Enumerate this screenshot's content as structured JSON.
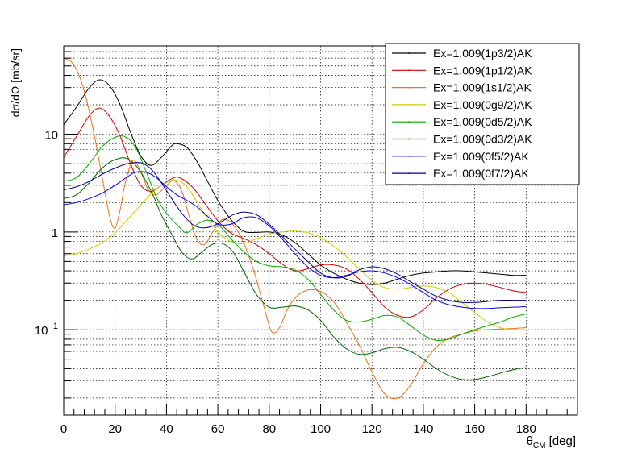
{
  "chart_data": {
    "type": "line",
    "title": "",
    "xlabel_main": "θ",
    "xlabel_sub": "CM",
    "xlabel_unit": " [deg]",
    "ylabel": "dσ/dΩ [mb/sr]",
    "xlim": [
      0,
      200
    ],
    "ylim": [
      0.0134,
      80
    ],
    "yscale": "log",
    "grid": true,
    "legend_position": "top-right",
    "x_ticks": [
      0,
      20,
      40,
      60,
      80,
      100,
      120,
      140,
      160,
      180
    ],
    "y_ticks": [
      {
        "value": 0.1,
        "label_base": "10",
        "label_exp": "−1"
      },
      {
        "value": 1,
        "label_base": "1",
        "label_exp": ""
      },
      {
        "value": 10,
        "label_base": "10",
        "label_exp": ""
      }
    ],
    "series": [
      {
        "name": "Ex=1.009(1p3/2)AK",
        "color": "#000000",
        "x": [
          0,
          5,
          10,
          14,
          18,
          22,
          26,
          30,
          34,
          38,
          42,
          44,
          48,
          52,
          56,
          60,
          65,
          70,
          75,
          80,
          85,
          90,
          95,
          100,
          105,
          110,
          115,
          120,
          125,
          130,
          135,
          140,
          145,
          150,
          155,
          160,
          165,
          170,
          175,
          180
        ],
        "y": [
          12.5,
          19,
          30,
          36,
          31,
          20,
          10.5,
          6.0,
          4.8,
          5.8,
          7.6,
          8.0,
          7.3,
          5.2,
          3.3,
          2.1,
          1.35,
          1.02,
          0.99,
          1.0,
          0.93,
          0.78,
          0.6,
          0.46,
          0.38,
          0.33,
          0.3,
          0.29,
          0.3,
          0.33,
          0.36,
          0.38,
          0.39,
          0.4,
          0.4,
          0.39,
          0.38,
          0.37,
          0.36,
          0.36
        ]
      },
      {
        "name": "Ex=1.009(1p1/2)AK",
        "color": "#d40000",
        "x": [
          0,
          5,
          10,
          14,
          18,
          22,
          26,
          30,
          34,
          38,
          42,
          45,
          50,
          55,
          60,
          65,
          70,
          75,
          80,
          85,
          90,
          95,
          100,
          105,
          110,
          115,
          120,
          125,
          130,
          135,
          140,
          145,
          150,
          155,
          160,
          165,
          170,
          175,
          180
        ],
        "y": [
          5.8,
          9.5,
          15.5,
          18.5,
          15,
          9.5,
          5.0,
          3.0,
          2.6,
          3.0,
          3.5,
          3.6,
          2.9,
          1.95,
          1.3,
          0.98,
          0.86,
          0.74,
          0.6,
          0.47,
          0.4,
          0.42,
          0.46,
          0.46,
          0.42,
          0.33,
          0.24,
          0.17,
          0.14,
          0.135,
          0.16,
          0.21,
          0.26,
          0.29,
          0.3,
          0.29,
          0.27,
          0.25,
          0.24
        ]
      },
      {
        "name": "Ex=1.009(1s1/2)AK",
        "color": "#e8731a",
        "x": [
          0,
          3,
          6,
          9,
          12,
          15,
          18,
          20,
          22,
          24,
          27,
          30,
          33,
          36,
          40,
          43,
          46,
          49,
          52,
          55,
          58,
          62,
          66,
          70,
          74,
          78,
          81,
          84,
          87,
          90,
          94,
          98,
          102,
          106,
          110,
          115,
          120,
          125,
          130,
          135,
          140,
          145,
          150,
          155,
          160,
          165,
          170,
          175,
          180
        ],
        "y": [
          60,
          55,
          40,
          22,
          9.5,
          3.6,
          1.4,
          1.1,
          1.7,
          3.2,
          5.4,
          4.1,
          2.7,
          2.4,
          3.0,
          3.35,
          2.6,
          1.4,
          0.82,
          0.75,
          1.0,
          1.35,
          1.18,
          0.78,
          0.4,
          0.17,
          0.095,
          0.105,
          0.16,
          0.21,
          0.25,
          0.255,
          0.23,
          0.18,
          0.12,
          0.07,
          0.037,
          0.022,
          0.02,
          0.027,
          0.045,
          0.066,
          0.082,
          0.09,
          0.097,
          0.1,
          0.102,
          0.103,
          0.105
        ]
      },
      {
        "name": "Ex=1.009(0g9/2)AK",
        "color": "#cccc00",
        "x": [
          0,
          5,
          10,
          15,
          20,
          25,
          30,
          35,
          40,
          44,
          48,
          52,
          56,
          60,
          65,
          70,
          75,
          80,
          85,
          90,
          95,
          100,
          105,
          110,
          115,
          120,
          125,
          130,
          135,
          140,
          145,
          150,
          155,
          160,
          165,
          170,
          175,
          180
        ],
        "y": [
          0.57,
          0.6,
          0.67,
          0.78,
          0.98,
          1.35,
          1.9,
          2.6,
          3.2,
          3.4,
          2.9,
          2.0,
          1.35,
          1.0,
          0.8,
          0.76,
          0.85,
          0.95,
          1.0,
          1.02,
          0.98,
          0.88,
          0.72,
          0.56,
          0.42,
          0.32,
          0.27,
          0.26,
          0.27,
          0.28,
          0.27,
          0.24,
          0.19,
          0.15,
          0.12,
          0.105,
          0.1,
          0.1
        ]
      },
      {
        "name": "Ex=1.009(0d5/2)AK",
        "color": "#00aa00",
        "x": [
          0,
          5,
          10,
          15,
          20,
          24,
          28,
          32,
          36,
          40,
          45,
          48,
          52,
          56,
          60,
          65,
          70,
          75,
          80,
          85,
          90,
          95,
          100,
          105,
          110,
          115,
          120,
          125,
          130,
          135,
          140,
          145,
          150,
          155,
          160,
          165,
          170,
          175,
          180
        ],
        "y": [
          3.3,
          3.6,
          5.0,
          7.5,
          9.3,
          9.4,
          7.3,
          4.2,
          2.3,
          1.55,
          1.12,
          0.98,
          1.2,
          1.32,
          1.2,
          0.86,
          0.63,
          0.5,
          0.45,
          0.44,
          0.41,
          0.33,
          0.23,
          0.16,
          0.125,
          0.12,
          0.128,
          0.14,
          0.135,
          0.11,
          0.088,
          0.078,
          0.08,
          0.09,
          0.1,
          0.11,
          0.12,
          0.135,
          0.145
        ]
      },
      {
        "name": "Ex=1.009(0d3/2)AK",
        "color": "#006400",
        "x": [
          0,
          5,
          10,
          15,
          20,
          25,
          30,
          35,
          38,
          42,
          46,
          50,
          54,
          58,
          62,
          66,
          70,
          75,
          80,
          85,
          90,
          95,
          100,
          105,
          110,
          115,
          120,
          125,
          130,
          135,
          140,
          145,
          150,
          155,
          160,
          165,
          170,
          175,
          180
        ],
        "y": [
          2.2,
          2.4,
          3.2,
          4.5,
          5.5,
          5.6,
          4.1,
          2.3,
          1.5,
          0.95,
          0.62,
          0.53,
          0.63,
          0.75,
          0.76,
          0.62,
          0.4,
          0.23,
          0.17,
          0.17,
          0.175,
          0.16,
          0.125,
          0.085,
          0.064,
          0.056,
          0.058,
          0.064,
          0.066,
          0.06,
          0.05,
          0.04,
          0.034,
          0.031,
          0.031,
          0.033,
          0.036,
          0.039,
          0.041
        ]
      },
      {
        "name": "Ex=1.009(0f5/2)AK",
        "color": "#0000ff",
        "x": [
          0,
          5,
          10,
          15,
          20,
          25,
          28,
          32,
          36,
          40,
          44,
          48,
          52,
          56,
          60,
          65,
          70,
          75,
          80,
          85,
          90,
          95,
          100,
          105,
          110,
          115,
          120,
          125,
          130,
          135,
          140,
          145,
          150,
          155,
          160,
          165,
          170,
          175,
          180
        ],
        "y": [
          1.9,
          2.0,
          2.2,
          2.5,
          3.0,
          3.7,
          4.1,
          4.1,
          3.6,
          2.9,
          2.4,
          2.1,
          1.8,
          1.45,
          1.2,
          1.2,
          1.4,
          1.4,
          1.15,
          0.85,
          0.6,
          0.44,
          0.36,
          0.34,
          0.36,
          0.39,
          0.4,
          0.38,
          0.34,
          0.29,
          0.24,
          0.2,
          0.18,
          0.17,
          0.165,
          0.165,
          0.168,
          0.17,
          0.172
        ]
      },
      {
        "name": "Ex=1.009(0f7/2)AK",
        "color": "#00008b",
        "x": [
          0,
          5,
          10,
          15,
          20,
          25,
          30,
          34,
          38,
          42,
          46,
          50,
          54,
          58,
          62,
          66,
          70,
          75,
          80,
          85,
          90,
          95,
          100,
          105,
          110,
          115,
          120,
          125,
          130,
          135,
          140,
          145,
          150,
          155,
          160,
          165,
          170,
          175,
          180
        ],
        "y": [
          2.7,
          2.9,
          3.3,
          3.9,
          4.5,
          5.0,
          5.1,
          4.4,
          3.2,
          2.2,
          1.55,
          1.2,
          1.1,
          1.15,
          1.3,
          1.5,
          1.6,
          1.5,
          1.2,
          0.9,
          0.67,
          0.5,
          0.38,
          0.34,
          0.35,
          0.41,
          0.44,
          0.42,
          0.37,
          0.31,
          0.26,
          0.22,
          0.2,
          0.19,
          0.19,
          0.195,
          0.2,
          0.2,
          0.2
        ]
      }
    ]
  }
}
